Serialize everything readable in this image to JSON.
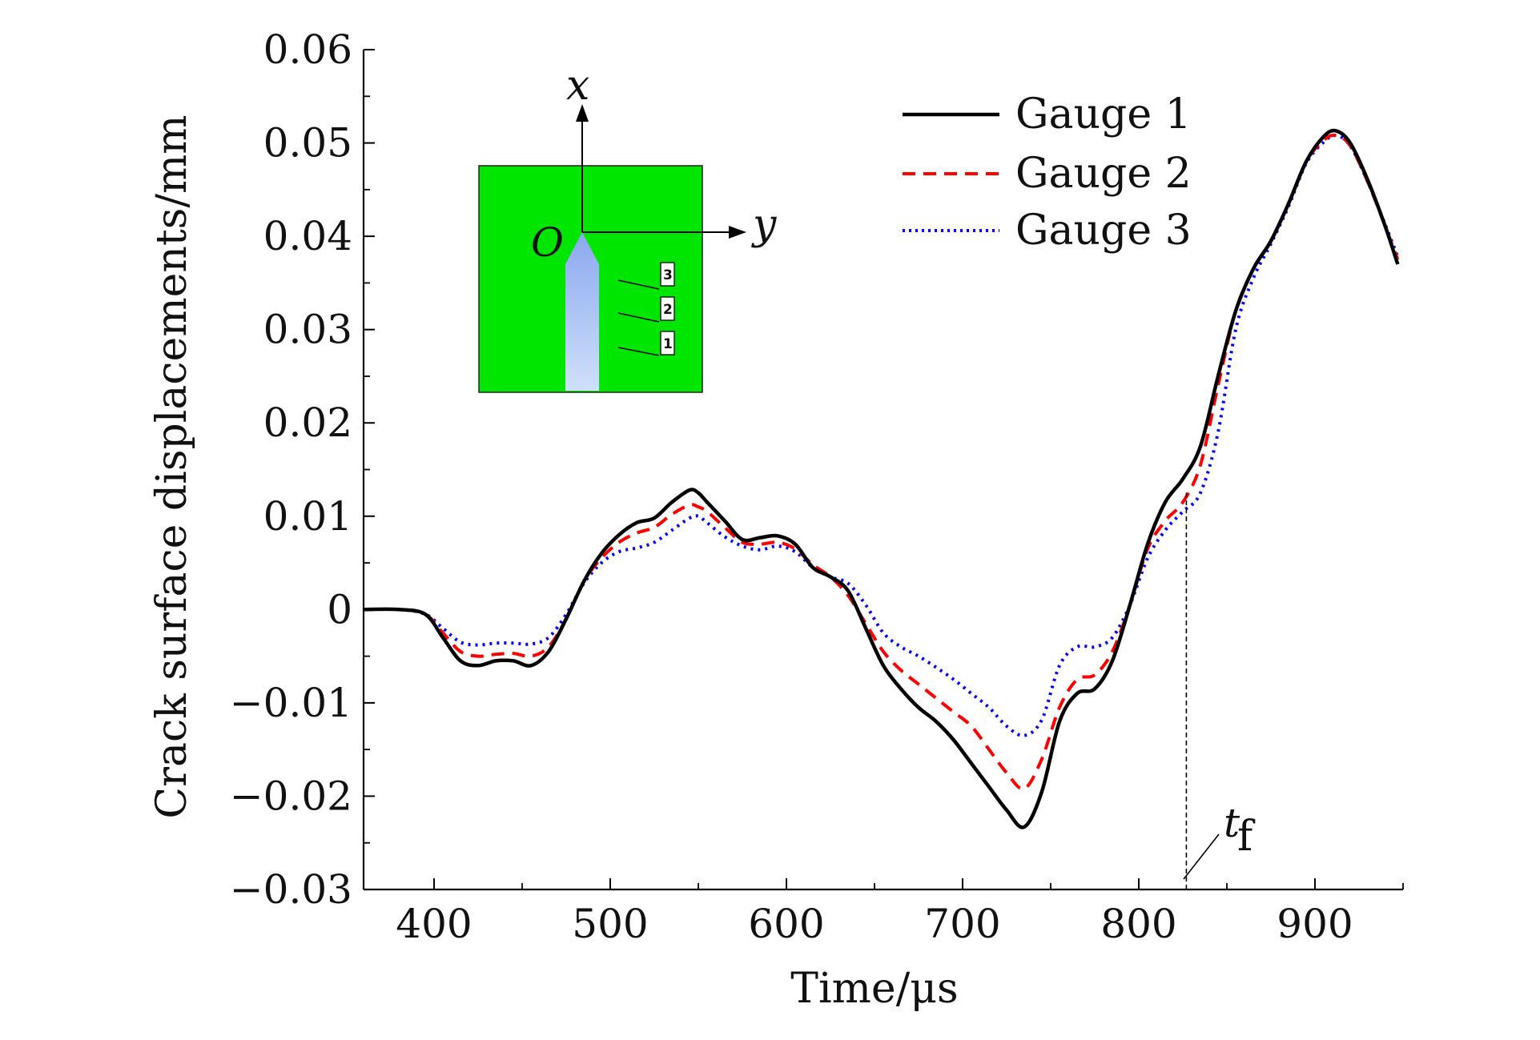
{
  "chart_data": {
    "type": "line",
    "xlabel": "Time/μs",
    "ylabel": "Crack surface displacements/mm",
    "xlim": [
      360,
      950
    ],
    "ylim": [
      -0.03,
      0.06
    ],
    "xticks": [
      400,
      500,
      600,
      700,
      800,
      900
    ],
    "xtick_labels": [
      "400",
      "500",
      "600",
      "700",
      "800",
      "900"
    ],
    "yticks": [
      -0.03,
      -0.02,
      -0.01,
      0,
      0.01,
      0.02,
      0.03,
      0.04,
      0.05,
      0.06
    ],
    "ytick_labels": [
      "−0.03",
      "−0.02",
      "−0.01",
      "0",
      "0.01",
      "0.02",
      "0.03",
      "0.04",
      "0.05",
      "0.06"
    ],
    "grid": false,
    "legend_position": "top-right",
    "series": [
      {
        "name": "Gauge 1",
        "color": "#000000",
        "style": "solid",
        "x": [
          360,
          380,
          395,
          405,
          415,
          425,
          435,
          445,
          455,
          465,
          475,
          485,
          495,
          505,
          515,
          525,
          535,
          545,
          550,
          555,
          565,
          575,
          585,
          595,
          605,
          615,
          625,
          635,
          645,
          655,
          665,
          675,
          685,
          695,
          705,
          715,
          725,
          735,
          745,
          755,
          765,
          775,
          785,
          795,
          805,
          815,
          825,
          835,
          845,
          855,
          865,
          875,
          885,
          895,
          905,
          912,
          920,
          930,
          940,
          947
        ],
        "y": [
          0,
          0,
          -0.0005,
          -0.003,
          -0.0055,
          -0.006,
          -0.0055,
          -0.0055,
          -0.006,
          -0.0045,
          -0.001,
          0.003,
          0.006,
          0.008,
          0.0093,
          0.0098,
          0.0115,
          0.0128,
          0.0125,
          0.0115,
          0.0095,
          0.0075,
          0.0077,
          0.0079,
          0.007,
          0.0045,
          0.0035,
          0.002,
          -0.002,
          -0.006,
          -0.0085,
          -0.0105,
          -0.012,
          -0.014,
          -0.0165,
          -0.019,
          -0.0215,
          -0.0233,
          -0.0195,
          -0.012,
          -0.009,
          -0.0085,
          -0.0055,
          0.0005,
          0.007,
          0.0115,
          0.014,
          0.0175,
          0.025,
          0.032,
          0.0365,
          0.0395,
          0.0435,
          0.048,
          0.0507,
          0.0513,
          0.05,
          0.046,
          0.041,
          0.037
        ]
      },
      {
        "name": "Gauge 2",
        "color": "#ff0000",
        "style": "dashed",
        "x": [
          360,
          380,
          395,
          405,
          415,
          425,
          435,
          445,
          455,
          465,
          475,
          485,
          495,
          505,
          515,
          525,
          535,
          545,
          550,
          555,
          565,
          575,
          585,
          595,
          605,
          615,
          625,
          635,
          645,
          655,
          665,
          675,
          685,
          695,
          705,
          715,
          725,
          735,
          745,
          755,
          765,
          775,
          785,
          795,
          805,
          815,
          825,
          835,
          845,
          855,
          865,
          875,
          885,
          895,
          905,
          912,
          920,
          930,
          940,
          947
        ],
        "y": [
          0,
          0,
          -0.0005,
          -0.0025,
          -0.0045,
          -0.005,
          -0.0048,
          -0.0047,
          -0.005,
          -0.004,
          -0.001,
          0.003,
          0.0055,
          0.0072,
          0.0082,
          0.0088,
          0.0102,
          0.0112,
          0.011,
          0.0105,
          0.0088,
          0.0072,
          0.007,
          0.0072,
          0.0065,
          0.0048,
          0.0035,
          0.0015,
          -0.0015,
          -0.0045,
          -0.0065,
          -0.008,
          -0.0095,
          -0.011,
          -0.0125,
          -0.015,
          -0.0175,
          -0.0192,
          -0.016,
          -0.0105,
          -0.0075,
          -0.007,
          -0.0045,
          0.0005,
          0.0065,
          0.0095,
          0.0115,
          0.0155,
          0.024,
          0.032,
          0.0365,
          0.0395,
          0.0435,
          0.048,
          0.0503,
          0.0508,
          0.0497,
          0.0458,
          0.041,
          0.0375
        ]
      },
      {
        "name": "Gauge 3",
        "color": "#0000ff",
        "style": "dotted",
        "x": [
          360,
          380,
          395,
          405,
          415,
          425,
          435,
          445,
          455,
          465,
          475,
          485,
          495,
          505,
          515,
          525,
          535,
          545,
          550,
          555,
          565,
          575,
          585,
          595,
          605,
          615,
          625,
          635,
          645,
          655,
          665,
          675,
          685,
          695,
          705,
          715,
          725,
          735,
          745,
          755,
          765,
          775,
          785,
          795,
          805,
          815,
          825,
          835,
          845,
          855,
          865,
          875,
          885,
          895,
          905,
          912,
          920,
          930,
          940,
          947
        ],
        "y": [
          0,
          0,
          -0.0005,
          -0.002,
          -0.0035,
          -0.0038,
          -0.0036,
          -0.0036,
          -0.0037,
          -0.003,
          -0.0005,
          0.0028,
          0.005,
          0.0062,
          0.0066,
          0.0072,
          0.0085,
          0.0098,
          0.01,
          0.0093,
          0.0078,
          0.0068,
          0.0064,
          0.0068,
          0.0062,
          0.0045,
          0.0035,
          0.0028,
          0.0005,
          -0.0025,
          -0.004,
          -0.005,
          -0.0062,
          -0.0075,
          -0.009,
          -0.0105,
          -0.0125,
          -0.0135,
          -0.0118,
          -0.006,
          -0.004,
          -0.004,
          -0.003,
          0.0005,
          0.0055,
          0.0085,
          0.0105,
          0.0125,
          0.019,
          0.03,
          0.0355,
          0.0392,
          0.0432,
          0.0478,
          0.0501,
          0.0508,
          0.0497,
          0.0458,
          0.0412,
          0.0378
        ]
      }
    ],
    "annotation": {
      "label": "t",
      "subscript": "f",
      "x": 827,
      "y_from": -0.03,
      "y_to": 0.0125
    },
    "inset": {
      "background": "#00e600",
      "x_axis": "x",
      "y_axis": "y",
      "origin": "O",
      "gauges": [
        "3",
        "2",
        "1"
      ]
    }
  }
}
